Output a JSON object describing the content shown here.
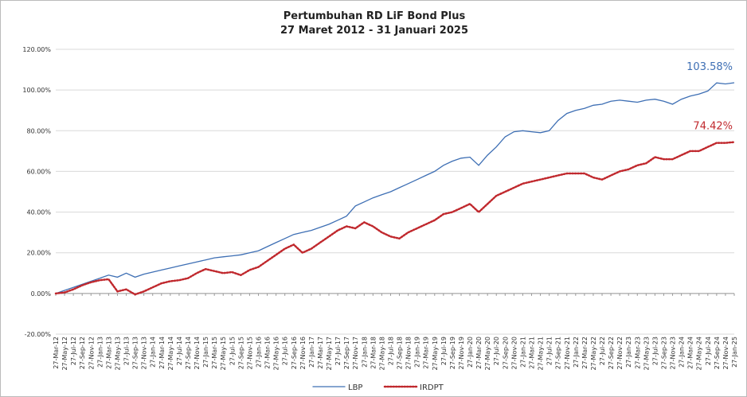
{
  "chart_data": {
    "type": "line",
    "title": "Pertumbuhan RD LiF Bond Plus",
    "subtitle": "27 Maret 2012 - 31 Januari 2025",
    "categories": [
      "27-Mar-12",
      "27-May-12",
      "27-Jul-12",
      "27-Sep-12",
      "27-Nov-12",
      "27-Jan-13",
      "27-Mar-13",
      "27-May-13",
      "27-Jul-13",
      "27-Sep-13",
      "27-Nov-13",
      "27-Jan-14",
      "27-Mar-14",
      "27-May-14",
      "27-Jul-14",
      "27-Sep-14",
      "27-Nov-14",
      "27-Jan-15",
      "27-Mar-15",
      "27-May-15",
      "27-Jul-15",
      "27-Sep-15",
      "27-Nov-15",
      "27-Jan-16",
      "27-Mar-16",
      "27-May-16",
      "27-Jul-16",
      "27-Sep-16",
      "27-Nov-16",
      "27-Jan-17",
      "27-Mar-17",
      "27-May-17",
      "27-Jul-17",
      "27-Sep-17",
      "27-Nov-17",
      "27-Jan-18",
      "27-Mar-18",
      "27-May-18",
      "27-Jul-18",
      "27-Sep-18",
      "27-Nov-18",
      "27-Jan-19",
      "27-Mar-19",
      "27-May-19",
      "27-Jul-19",
      "27-Sep-19",
      "27-Nov-19",
      "27-Jan-20",
      "27-Mar-20",
      "27-May-20",
      "27-Jul-20",
      "27-Sep-20",
      "27-Nov-20",
      "27-Jan-21",
      "27-Mar-21",
      "27-May-21",
      "27-Jul-21",
      "27-Sep-21",
      "27-Nov-21",
      "27-Jan-22",
      "27-Mar-22",
      "27-May-22",
      "27-Jul-22",
      "27-Sep-22",
      "27-Nov-22",
      "27-Jan-23",
      "27-Mar-23",
      "27-May-23",
      "27-Jul-23",
      "27-Sep-23",
      "27-Nov-23",
      "27-Jan-24",
      "27-Mar-24",
      "27-May-24",
      "27-Jul-24",
      "27-Sep-24",
      "27-Nov-24",
      "27-Jan-25"
    ],
    "series": [
      {
        "name": "LBP",
        "color": "#3e6fb4",
        "style": "solid",
        "values": [
          0,
          1.5,
          3,
          4.5,
          6,
          7.5,
          9,
          8,
          10,
          8,
          9.5,
          10.5,
          11.5,
          12.5,
          13.5,
          14.5,
          15.5,
          16.5,
          17.5,
          18,
          18.5,
          19,
          20,
          21,
          23,
          25,
          27,
          29,
          30,
          31,
          32.5,
          34,
          36,
          38,
          43,
          45,
          47,
          48.5,
          50,
          52,
          54,
          56,
          58,
          60,
          63,
          65,
          66.5,
          67,
          63,
          68,
          72,
          77,
          79.5,
          80,
          79.5,
          79,
          80,
          85,
          88.5,
          90,
          91,
          92.5,
          93,
          94.5,
          95,
          94.5,
          94,
          95,
          95.5,
          94.5,
          93,
          95.5,
          97,
          98,
          99.5,
          103.5,
          103,
          103.58
        ],
        "value_labels": [
          null,
          null,
          null,
          null,
          null,
          null,
          null,
          null,
          null,
          null,
          null,
          null,
          null,
          null,
          null,
          null,
          null,
          null,
          null,
          null,
          null,
          null,
          null,
          null,
          null,
          null,
          null,
          null,
          null,
          null,
          null,
          null,
          null,
          null,
          null,
          null,
          null,
          null,
          null,
          null,
          null,
          null,
          null,
          null,
          null,
          null,
          null,
          null,
          null,
          null,
          null,
          null,
          null,
          null,
          null,
          null,
          null,
          null,
          null,
          null,
          null,
          null,
          null,
          null,
          null,
          null,
          null,
          null,
          null,
          null,
          null,
          null,
          null,
          null,
          null,
          null,
          null,
          "103.58%"
        ]
      },
      {
        "name": "IRDPT",
        "color": "#c0282d",
        "style": "dotted",
        "values": [
          0,
          0.5,
          2,
          4,
          5.5,
          6.5,
          7,
          1,
          2,
          -0.5,
          1,
          3,
          5,
          6,
          6.5,
          7.5,
          10,
          12,
          11,
          10,
          10.5,
          9,
          11.5,
          13,
          16,
          19,
          22,
          24,
          20,
          22,
          25,
          28,
          31,
          33,
          32,
          35,
          33,
          30,
          28,
          27,
          30,
          32,
          34,
          36,
          39,
          40,
          42,
          44,
          40,
          44,
          48,
          50,
          52,
          54,
          55,
          56,
          57,
          58,
          59,
          59,
          59,
          57,
          56,
          58,
          60,
          61,
          63,
          64,
          67,
          66,
          66,
          68,
          70,
          70,
          72,
          74,
          74,
          74.42
        ],
        "value_labels": [
          null,
          null,
          null,
          null,
          null,
          null,
          null,
          null,
          null,
          null,
          null,
          null,
          null,
          null,
          null,
          null,
          null,
          null,
          null,
          null,
          null,
          null,
          null,
          null,
          null,
          null,
          null,
          null,
          null,
          null,
          null,
          null,
          null,
          null,
          null,
          null,
          null,
          null,
          null,
          null,
          null,
          null,
          null,
          null,
          null,
          null,
          null,
          null,
          null,
          null,
          null,
          null,
          null,
          null,
          null,
          null,
          null,
          null,
          null,
          null,
          null,
          null,
          null,
          null,
          null,
          null,
          null,
          null,
          null,
          null,
          null,
          null,
          null,
          null,
          null,
          null,
          null,
          "74.42%"
        ]
      }
    ],
    "ylim": [
      -20,
      120
    ],
    "yticks": [
      {
        "value": -20,
        "label": "-20.00%"
      },
      {
        "value": 0,
        "label": "0.00%"
      },
      {
        "value": 20,
        "label": "20.00%"
      },
      {
        "value": 40,
        "label": "40.00%"
      },
      {
        "value": 60,
        "label": "60.00%"
      },
      {
        "value": 80,
        "label": "80.00%"
      },
      {
        "value": 100,
        "label": "100.00%"
      },
      {
        "value": 120,
        "label": "120.00%"
      }
    ],
    "grid": true,
    "legend": "bottom"
  }
}
